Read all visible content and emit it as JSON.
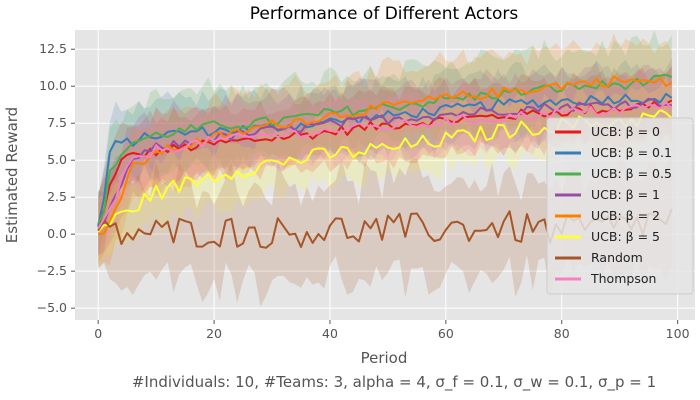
{
  "chart_data": {
    "type": "line",
    "title": "Performance of Different Actors",
    "xlabel": "Period",
    "ylabel": "Estimated Reward",
    "caption": "#Individuals: 10,  #Teams: 3,  alpha = 4,  σ_f = 0.1,  σ_w = 0.1,  σ_p = 1",
    "xlim": [
      -4,
      103
    ],
    "ylim": [
      -5.8,
      13.8
    ],
    "xticks": [
      0,
      20,
      40,
      60,
      80,
      100
    ],
    "yticks": [
      -5.0,
      -2.5,
      0.0,
      2.5,
      5.0,
      7.5,
      10.0,
      12.5
    ],
    "ytick_labels": [
      "−5.0",
      "−2.5",
      "0.0",
      "2.5",
      "5.0",
      "7.5",
      "10.0",
      "12.5"
    ],
    "grid": true,
    "legend_position": "right",
    "x": "0..99",
    "series": [
      {
        "name": "UCB: β = 0",
        "color": "#e41a1c",
        "start": 0.4,
        "end": 8.9,
        "rise": 3.0,
        "band": 2.2,
        "anchors": [
          [
            0,
            0.4
          ],
          [
            1,
            1.5
          ],
          [
            2,
            3.2
          ],
          [
            3,
            4.3
          ],
          [
            4,
            4.9
          ],
          [
            5,
            5.2
          ],
          [
            10,
            5.6
          ],
          [
            20,
            6.1
          ],
          [
            30,
            6.5
          ],
          [
            40,
            6.9
          ],
          [
            50,
            7.4
          ],
          [
            60,
            7.7
          ],
          [
            70,
            8.0
          ],
          [
            80,
            8.3
          ],
          [
            90,
            8.5
          ],
          [
            99,
            8.9
          ]
        ]
      },
      {
        "name": "UCB: β = 0.1",
        "color": "#377eb8",
        "band": 2.2,
        "anchors": [
          [
            0,
            0.5
          ],
          [
            1,
            2.5
          ],
          [
            2,
            5.5
          ],
          [
            3,
            6.0
          ],
          [
            5,
            6.2
          ],
          [
            10,
            6.7
          ],
          [
            20,
            7.0
          ],
          [
            30,
            7.2
          ],
          [
            40,
            7.6
          ],
          [
            50,
            8.0
          ],
          [
            60,
            8.4
          ],
          [
            70,
            8.8
          ],
          [
            80,
            9.0
          ],
          [
            90,
            9.2
          ],
          [
            99,
            9.2
          ]
        ]
      },
      {
        "name": "UCB: β = 0.5",
        "color": "#4daf4a",
        "band": 2.5,
        "anchors": [
          [
            0,
            0.5
          ],
          [
            1,
            1.8
          ],
          [
            2,
            4.0
          ],
          [
            4,
            5.5
          ],
          [
            6,
            6.2
          ],
          [
            10,
            6.7
          ],
          [
            20,
            7.3
          ],
          [
            30,
            7.6
          ],
          [
            40,
            8.2
          ],
          [
            50,
            8.6
          ],
          [
            60,
            9.1
          ],
          [
            70,
            9.5
          ],
          [
            80,
            9.9
          ],
          [
            90,
            10.1
          ],
          [
            99,
            10.5
          ]
        ]
      },
      {
        "name": "UCB: β = 1",
        "color": "#984ea3",
        "band": 2.3,
        "anchors": [
          [
            0,
            0.2
          ],
          [
            2,
            1.5
          ],
          [
            4,
            3.5
          ],
          [
            6,
            5.0
          ],
          [
            10,
            5.8
          ],
          [
            20,
            6.5
          ],
          [
            30,
            7.0
          ],
          [
            40,
            7.4
          ],
          [
            50,
            7.8
          ],
          [
            60,
            8.1
          ],
          [
            70,
            8.4
          ],
          [
            80,
            8.6
          ],
          [
            90,
            8.8
          ],
          [
            99,
            9.0
          ]
        ]
      },
      {
        "name": "UCB: β = 2",
        "color": "#ff7f00",
        "band": 2.5,
        "anchors": [
          [
            0,
            -0.3
          ],
          [
            2,
            1.0
          ],
          [
            4,
            2.5
          ],
          [
            6,
            4.5
          ],
          [
            10,
            5.5
          ],
          [
            20,
            6.5
          ],
          [
            30,
            7.4
          ],
          [
            40,
            8.0
          ],
          [
            50,
            8.6
          ],
          [
            60,
            9.2
          ],
          [
            70,
            9.6
          ],
          [
            80,
            10.1
          ],
          [
            90,
            10.4
          ],
          [
            99,
            10.2
          ]
        ]
      },
      {
        "name": "UCB: β = 5",
        "color": "#ffff33",
        "band": 2.0,
        "anchors": [
          [
            0,
            0.3
          ],
          [
            2,
            0.8
          ],
          [
            4,
            1.2
          ],
          [
            6,
            1.8
          ],
          [
            10,
            2.8
          ],
          [
            20,
            4.0
          ],
          [
            30,
            4.8
          ],
          [
            40,
            5.4
          ],
          [
            50,
            5.8
          ],
          [
            60,
            6.4
          ],
          [
            70,
            7.0
          ],
          [
            80,
            7.4
          ],
          [
            90,
            7.6
          ],
          [
            99,
            8.1
          ]
        ]
      },
      {
        "name": "Random",
        "color": "#a65628",
        "band": 3.3,
        "anchors": [
          [
            0,
            0.0
          ],
          [
            10,
            0.1
          ],
          [
            20,
            0.2
          ],
          [
            30,
            0.1
          ],
          [
            40,
            0.3
          ],
          [
            50,
            0.3
          ],
          [
            60,
            0.4
          ],
          [
            70,
            0.5
          ],
          [
            80,
            0.2
          ],
          [
            90,
            0.5
          ],
          [
            99,
            1.1
          ]
        ]
      },
      {
        "name": "Thompson",
        "color": "#f781bf",
        "band": 2.0,
        "anchors": [
          [
            0,
            0.2
          ],
          [
            2,
            1.5
          ],
          [
            4,
            3.5
          ],
          [
            6,
            5.0
          ],
          [
            10,
            5.7
          ],
          [
            20,
            6.3
          ],
          [
            30,
            6.7
          ],
          [
            40,
            7.0
          ],
          [
            50,
            7.3
          ],
          [
            60,
            7.6
          ],
          [
            70,
            7.9
          ],
          [
            80,
            8.2
          ],
          [
            90,
            8.4
          ],
          [
            99,
            8.7
          ]
        ]
      }
    ]
  }
}
